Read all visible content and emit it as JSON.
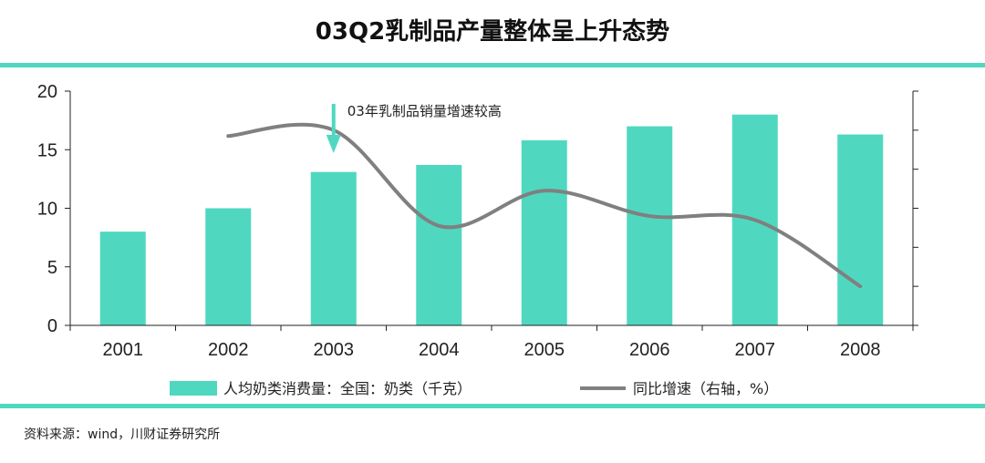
{
  "title": "03Q2乳制品产量整体呈上升态势",
  "source": "资料来源：wind，川财证券研究所",
  "colors": {
    "accent": "#4fd8bf",
    "line": "#808080",
    "text": "#222222"
  },
  "chart_data": {
    "type": "bar+line",
    "categories": [
      "2001",
      "2002",
      "2003",
      "2004",
      "2005",
      "2006",
      "2007",
      "2008"
    ],
    "series": [
      {
        "name": "人均奶类消费量：全国：奶类（千克）",
        "type": "bar",
        "axis": "left",
        "values": [
          8.0,
          10.0,
          13.1,
          13.7,
          15.8,
          17.0,
          18.0,
          16.3
        ]
      },
      {
        "name": "同比增速（右轴，%）",
        "type": "line",
        "axis": "right",
        "values": [
          null,
          4.85,
          5.0,
          2.55,
          3.45,
          2.8,
          2.7,
          1.0
        ]
      }
    ],
    "ylim_left": [
      0,
      20
    ],
    "yticks_left": [
      "0",
      "5",
      "10",
      "15",
      "20"
    ],
    "ylim_right": [
      0,
      6
    ],
    "right_tick_count": 7,
    "annotation": {
      "text": "03年乳制品销量增速较高",
      "category": "2003"
    },
    "legend": "bottom",
    "grid": false
  }
}
